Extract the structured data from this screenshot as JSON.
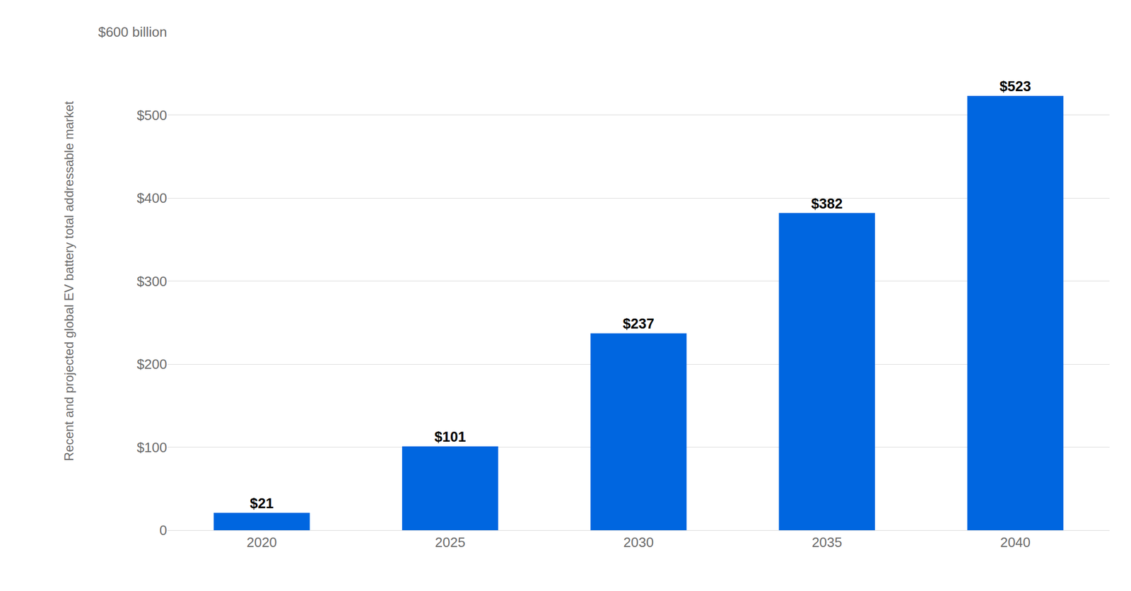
{
  "chart_data": {
    "type": "bar",
    "y_label": "Recent and projected global EV battery total addressable market",
    "categories": [
      "2020",
      "2025",
      "2030",
      "2035",
      "2040"
    ],
    "values": [
      21,
      101,
      237,
      382,
      523
    ],
    "value_labels": [
      "$21",
      "$101",
      "$237",
      "$382",
      "$523"
    ],
    "color": "#0066e0",
    "ylim": [
      0,
      600
    ],
    "yticks": [
      0,
      {
        "value": 100,
        "label": "$100"
      },
      {
        "value": 200,
        "label": "$200"
      },
      {
        "value": 300,
        "label": "$300"
      },
      {
        "value": 400,
        "label": "$400"
      },
      {
        "value": 500,
        "label": "$500"
      },
      {
        "value": 600,
        "label": "$600 billion"
      }
    ],
    "grid": true,
    "data_labels": true
  }
}
